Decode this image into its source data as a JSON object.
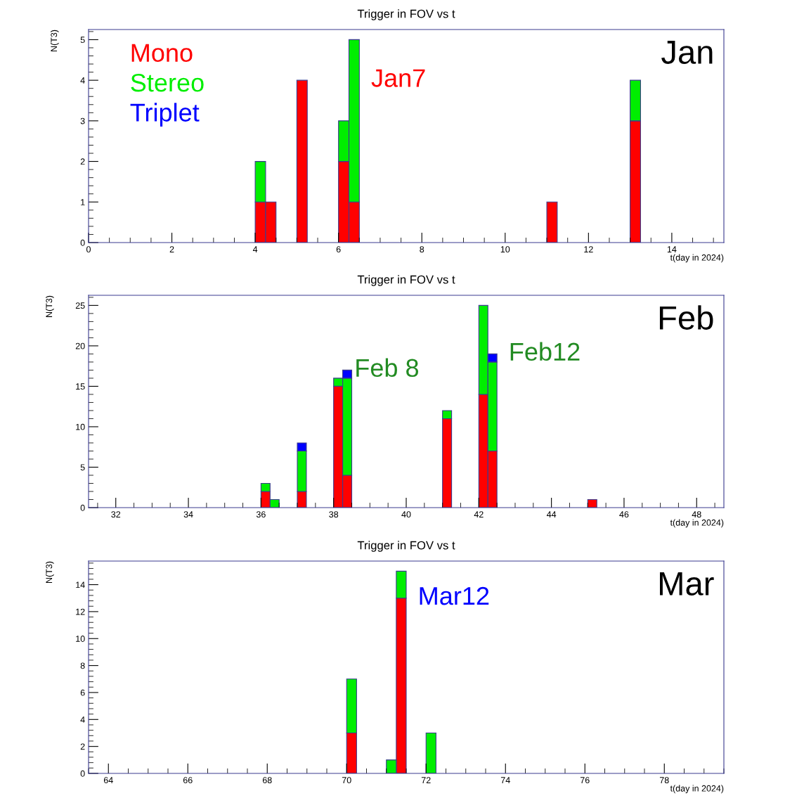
{
  "chart_data": [
    {
      "type": "bar",
      "title": "Trigger in FOV vs t",
      "xlabel": "t(day in 2024)",
      "ylabel": "N(T3)",
      "stacked": true,
      "legend": "top left",
      "grid": false,
      "x": [
        4.125,
        4.375,
        5.125,
        6.125,
        6.375,
        11.125,
        13.125
      ],
      "series": [
        {
          "name": "Mono",
          "color": "#ff0000",
          "values": [
            1,
            1,
            4,
            2,
            1,
            1,
            3
          ]
        },
        {
          "name": "Stereo",
          "color": "#00ee00",
          "values": [
            1,
            0,
            0,
            1,
            4,
            0,
            1
          ]
        },
        {
          "name": "Triplet",
          "color": "#0000ff",
          "values": [
            0,
            0,
            0,
            0,
            0,
            0,
            0
          ]
        }
      ],
      "xlim": [
        0,
        15.25
      ],
      "xticks": [
        0,
        2,
        4,
        6,
        8,
        10,
        12,
        14
      ],
      "ylim": [
        0,
        5.25
      ],
      "yticks": [
        0,
        1,
        2,
        3,
        4,
        5
      ],
      "annotations": [
        "Jan",
        {
          "text": "Jan7",
          "x": 6.5,
          "y": 4
        }
      ]
    },
    {
      "type": "bar",
      "title": "Trigger in FOV vs t",
      "xlabel": "t(day in 2024)",
      "ylabel": "N(T3)",
      "stacked": true,
      "grid": false,
      "x": [
        36.125,
        36.375,
        37.125,
        38.125,
        38.375,
        41.125,
        42.125,
        42.375,
        45.125
      ],
      "series": [
        {
          "color": "#ff0000",
          "values": [
            2,
            0,
            2,
            15,
            4,
            11,
            14,
            7,
            1
          ]
        },
        {
          "color": "#00ee00",
          "values": [
            1,
            1,
            5,
            1,
            12,
            1,
            11,
            11,
            0
          ]
        },
        {
          "color": "#0000ff",
          "values": [
            0,
            0,
            1,
            0,
            1,
            0,
            0,
            1,
            0
          ]
        }
      ],
      "xlim": [
        31.25,
        48.75
      ],
      "xticks": [
        32,
        34,
        36,
        38,
        40,
        42,
        44,
        46,
        48
      ],
      "ylim": [
        0,
        26.25
      ],
      "yticks": [
        0,
        5,
        10,
        15,
        20,
        25
      ],
      "annotations": [
        "Feb",
        {
          "text": "Feb 8",
          "x": 38.25,
          "y": 17
        },
        {
          "text": "Feb12",
          "x": 42.5,
          "y": 19
        }
      ]
    },
    {
      "type": "bar",
      "title": "Trigger in FOV vs t",
      "xlabel": "t(day in 2024)",
      "ylabel": "N(T3)",
      "stacked": true,
      "grid": false,
      "x": [
        70.125,
        71.125,
        71.375,
        72.125
      ],
      "series": [
        {
          "color": "#ff0000",
          "values": [
            3,
            0,
            13,
            0
          ]
        },
        {
          "color": "#00ee00",
          "values": [
            4,
            1,
            2,
            3
          ]
        }
      ],
      "xlim": [
        63.5,
        79.5
      ],
      "xticks": [
        64,
        66,
        68,
        70,
        72,
        74,
        76,
        78
      ],
      "ylim": [
        0,
        15.75
      ],
      "yticks": [
        0,
        2,
        4,
        6,
        8,
        10,
        12,
        14
      ],
      "annotations": [
        "Mar",
        {
          "text": "Mar12",
          "x": 71.5,
          "y": 13
        }
      ]
    }
  ]
}
